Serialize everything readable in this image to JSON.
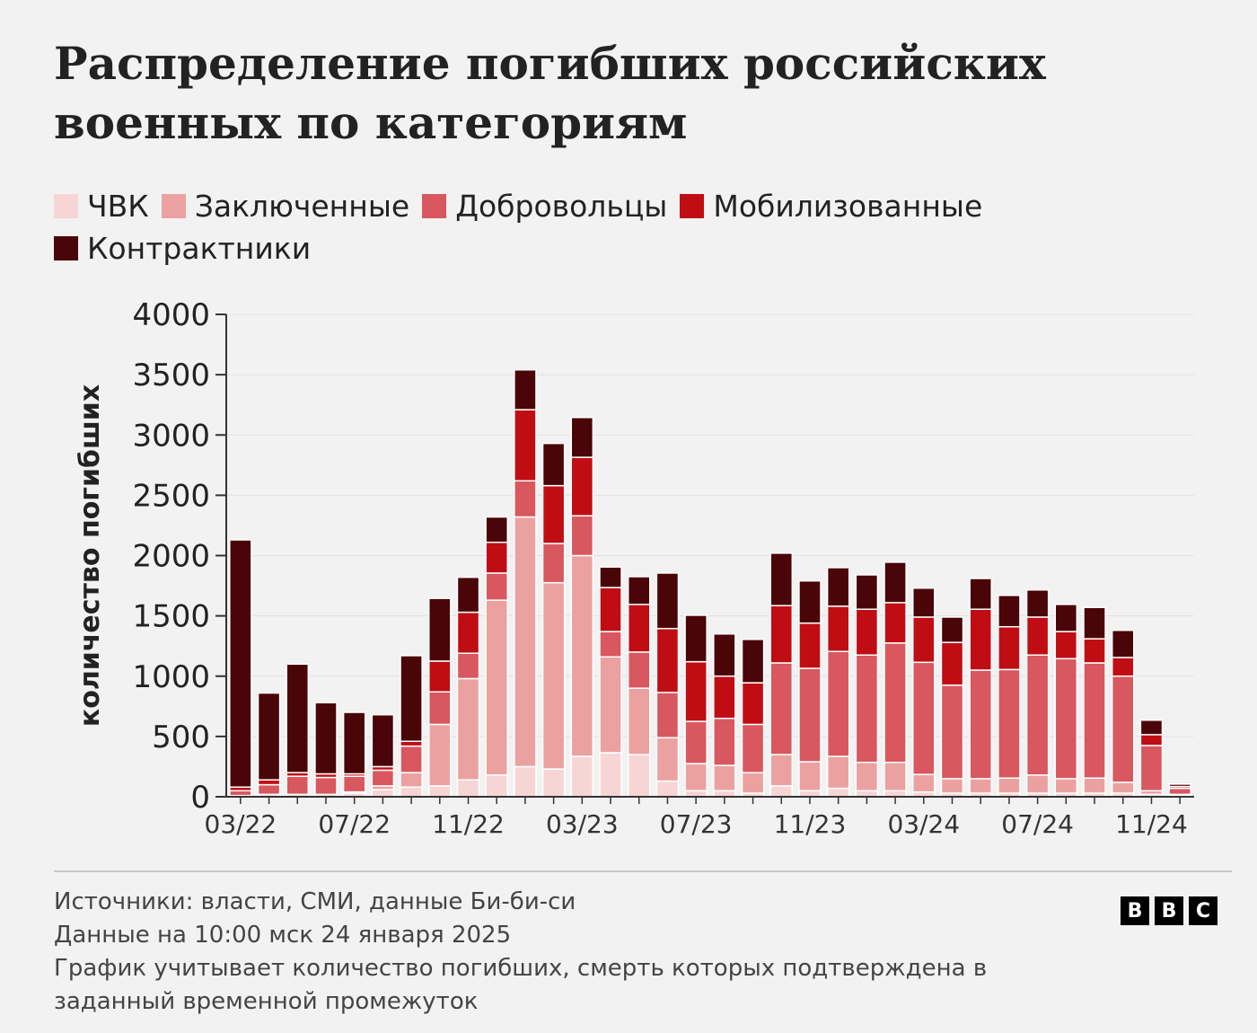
{
  "chart_data": {
    "type": "stacked_bar",
    "title": "Распределение погибших российских военных по категориям",
    "y_label": "количество погибших",
    "categories": [
      "03/22",
      null,
      null,
      null,
      "07/22",
      null,
      null,
      null,
      "11/22",
      null,
      null,
      null,
      "03/23",
      null,
      null,
      null,
      "07/23",
      null,
      null,
      null,
      "11/23",
      null,
      null,
      null,
      "03/24",
      null,
      null,
      null,
      "07/24",
      null,
      null,
      null,
      "11/24",
      null
    ],
    "series": [
      {
        "name": "ЧВК",
        "color": "#f8d5d5",
        "values": [
          10,
          20,
          20,
          20,
          30,
          60,
          80,
          90,
          140,
          180,
          250,
          230,
          335,
          365,
          350,
          130,
          50,
          50,
          30,
          90,
          50,
          70,
          50,
          50,
          40,
          30,
          30,
          30,
          30,
          30,
          30,
          30,
          20,
          10
        ]
      },
      {
        "name": "Заключенные",
        "color": "#eca1a1",
        "values": [
          0,
          0,
          0,
          0,
          10,
          30,
          120,
          510,
          840,
          1450,
          2070,
          1545,
          1665,
          795,
          550,
          360,
          225,
          210,
          170,
          260,
          240,
          265,
          235,
          235,
          145,
          120,
          120,
          125,
          150,
          120,
          125,
          90,
          30,
          10
        ]
      },
      {
        "name": "Добровольцы",
        "color": "#d9575f",
        "values": [
          40,
          80,
          150,
          140,
          130,
          130,
          220,
          270,
          210,
          225,
          300,
          325,
          330,
          210,
          300,
          375,
          350,
          390,
          400,
          760,
          775,
          870,
          890,
          990,
          930,
          775,
          900,
          900,
          995,
          995,
          955,
          880,
          375,
          50
        ]
      },
      {
        "name": "Мобилизованные",
        "color": "#c00d14",
        "values": [
          30,
          40,
          30,
          30,
          20,
          30,
          40,
          255,
          340,
          255,
          590,
          480,
          485,
          365,
          395,
          530,
          495,
          350,
          345,
          475,
          375,
          375,
          380,
          335,
          375,
          355,
          505,
          355,
          315,
          225,
          200,
          155,
          90,
          15
        ]
      },
      {
        "name": "Контрактники",
        "color": "#4a0508",
        "values": [
          2050,
          720,
          900,
          590,
          510,
          430,
          710,
          520,
          290,
          210,
          330,
          350,
          330,
          170,
          230,
          460,
          385,
          350,
          360,
          435,
          350,
          320,
          285,
          335,
          240,
          210,
          255,
          260,
          225,
          225,
          260,
          225,
          120,
          20
        ]
      }
    ],
    "ylim": [
      0,
      4000
    ],
    "yticks": [
      0,
      500,
      1000,
      1500,
      2000,
      2500,
      3000,
      3500,
      4000
    ],
    "grid": true,
    "legend": "top-left",
    "source": "Источники: власти, СМИ, данные Би-би-си",
    "date_note": "Данные на 10:00 мск 24 января 2025",
    "note": "График учитывает количество погибших, смерть которых подтверждена в заданный временной промежуток",
    "logo": [
      "B",
      "B",
      "C"
    ]
  }
}
